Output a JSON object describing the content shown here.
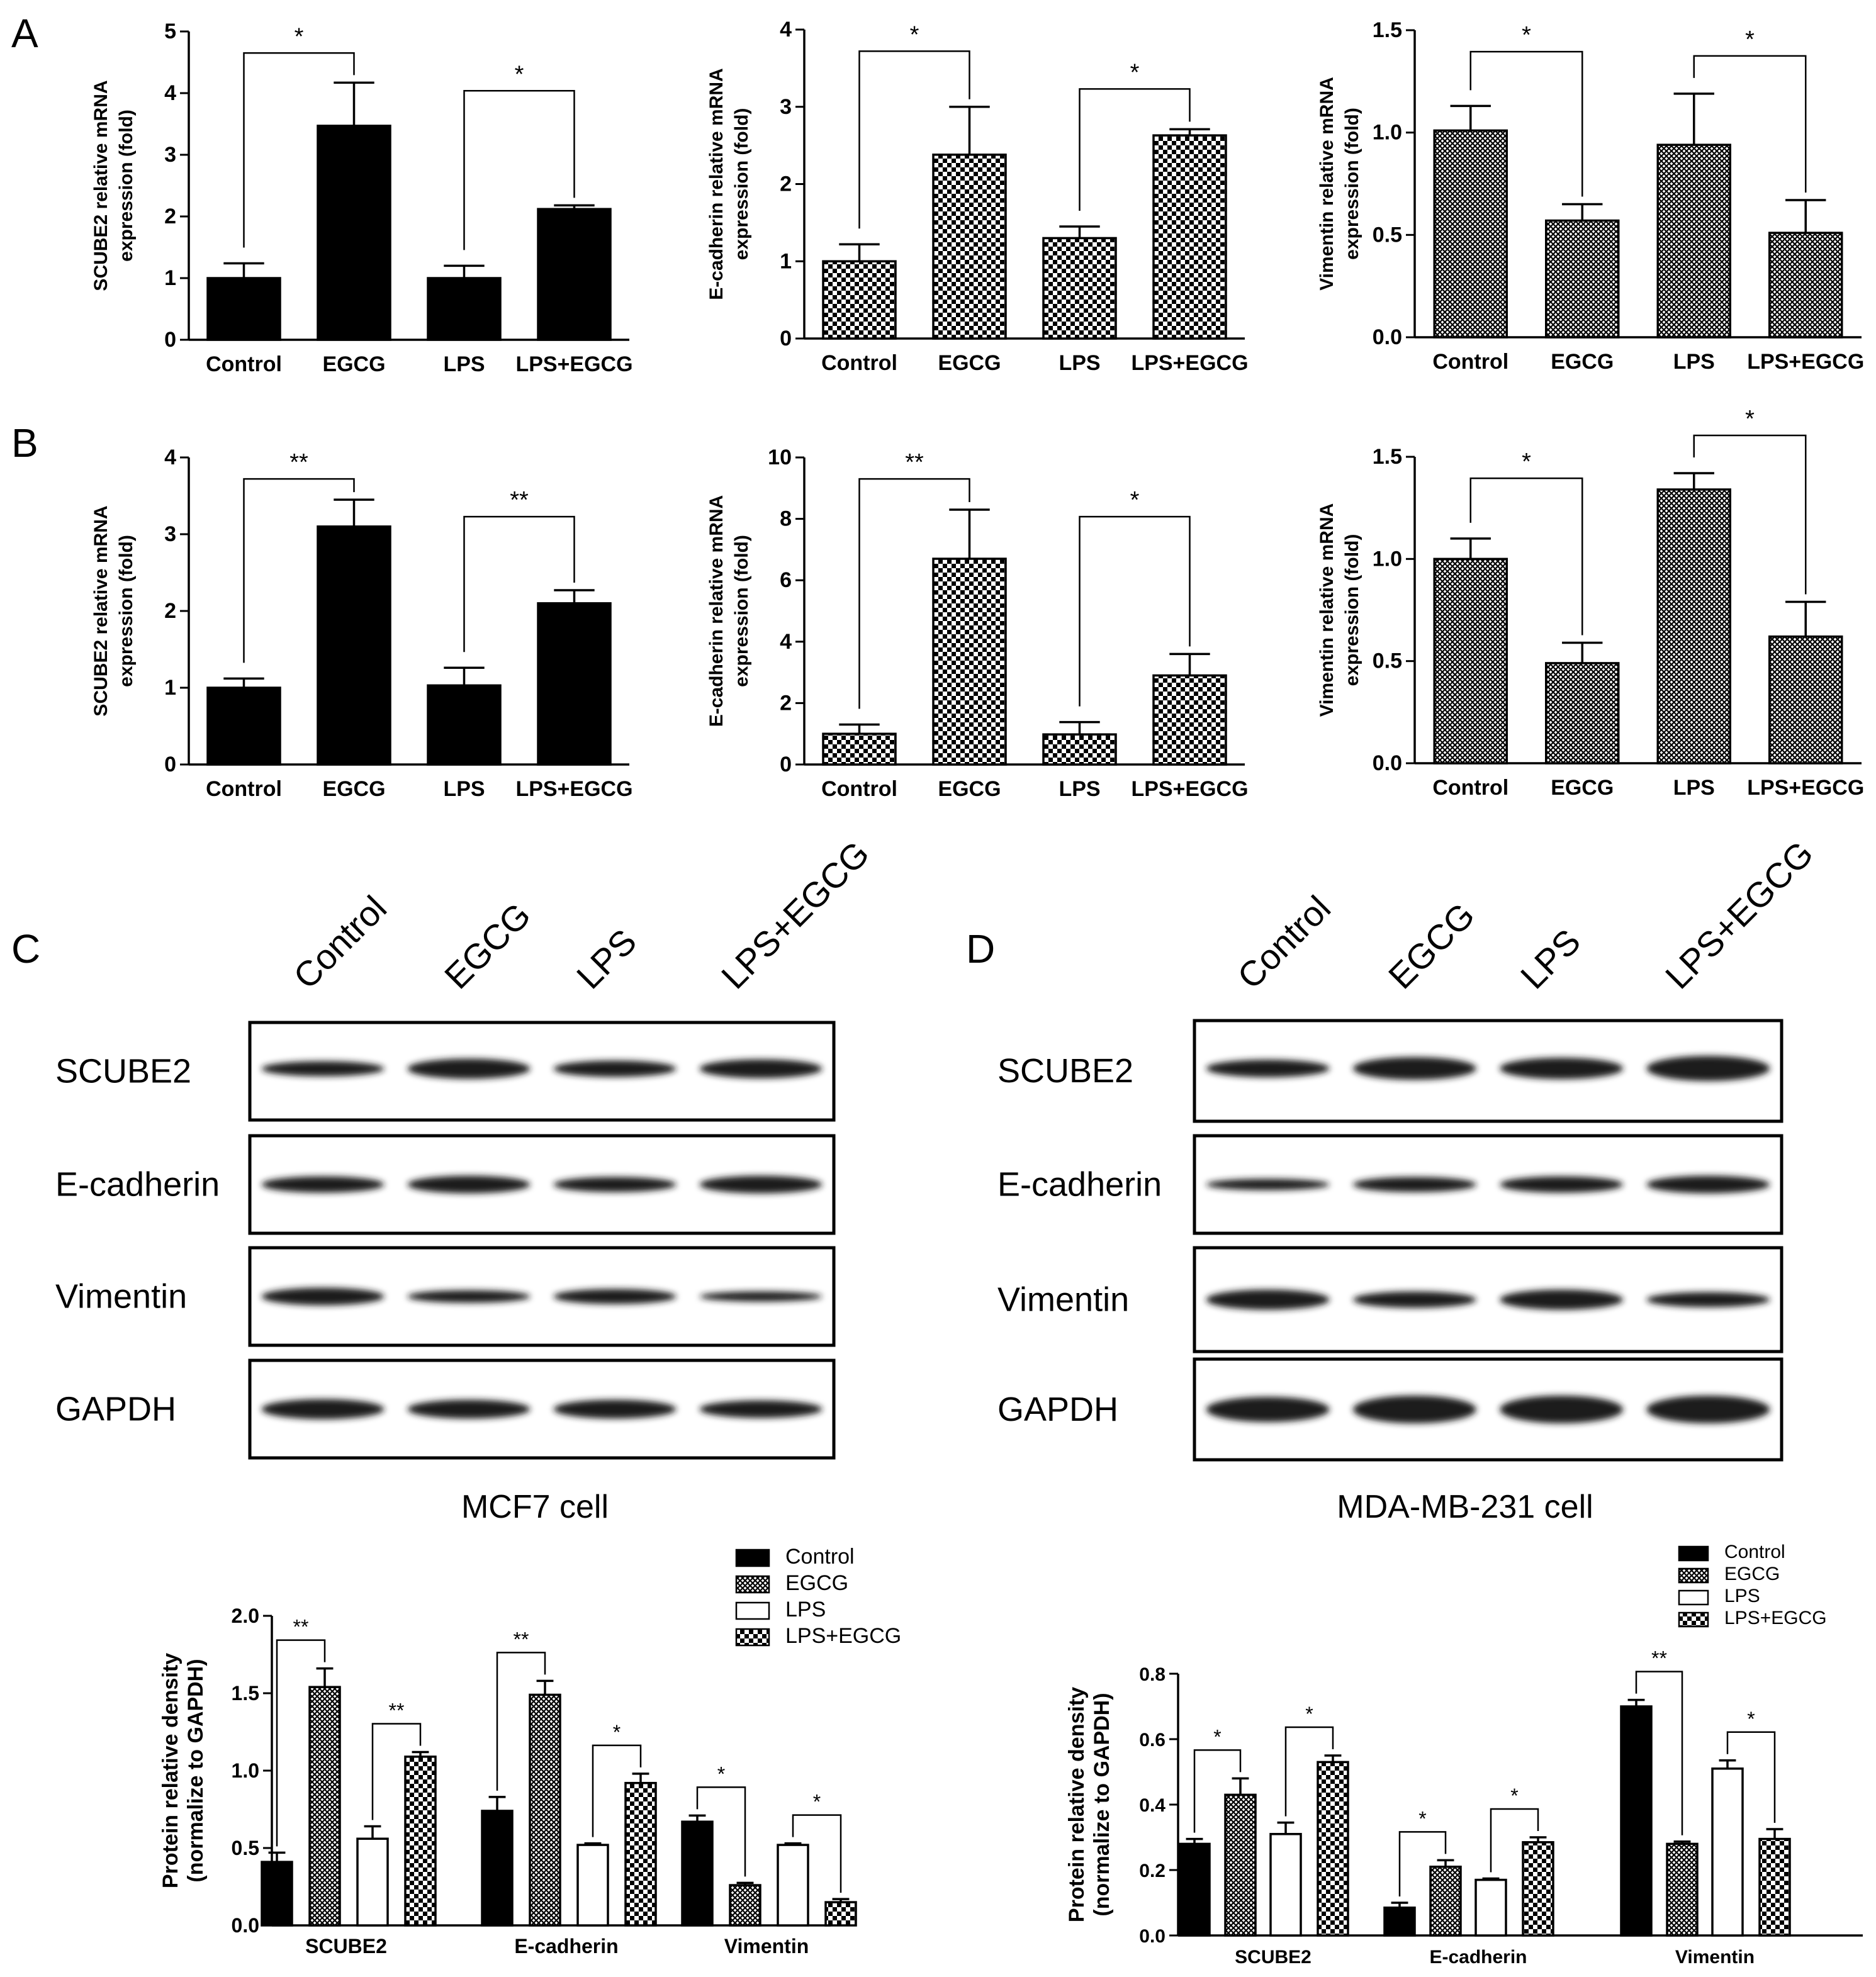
{
  "panel_labels": {
    "a": "A",
    "b": "B",
    "c": "C",
    "d": "D"
  },
  "colors": {
    "black": "#000000",
    "white": "#ffffff",
    "band": "#1a1a1a"
  },
  "groups": [
    "Control",
    "EGCG",
    "LPS",
    "LPS+EGCG"
  ],
  "blot_labels": [
    "SCUBE2",
    "E-cadherin",
    "Vimentin",
    "GAPDH"
  ],
  "blot_c_caption": "MCF7 cell",
  "blot_d_caption": "MDA-MB-231 cell",
  "chart_data": [
    {
      "id": "A1",
      "type": "bar",
      "style": "black",
      "ylabel1": "SCUBE2 relative mRNA",
      "ylabel2": "expression (fold)",
      "ylim": [
        0,
        5
      ],
      "ticks": [
        "0",
        "1",
        "2",
        "3",
        "4",
        "5"
      ],
      "tick_values": [
        0,
        1,
        2,
        3,
        4,
        5
      ],
      "categories": [
        "Control",
        "EGCG",
        "LPS",
        "LPS+EGCG"
      ],
      "values": [
        1.0,
        3.47,
        1.0,
        2.12
      ],
      "errors": [
        0.24,
        0.7,
        0.2,
        0.06
      ],
      "sig": [
        {
          "from": 0,
          "to": 1,
          "label": "*"
        },
        {
          "from": 2,
          "to": 3,
          "label": "*"
        }
      ]
    },
    {
      "id": "A2",
      "type": "bar",
      "style": "checker",
      "ylabel1": "E-cadherin relative mRNA",
      "ylabel2": "expression (fold)",
      "ylim": [
        0,
        4
      ],
      "ticks": [
        "0",
        "1",
        "2",
        "3",
        "4"
      ],
      "tick_values": [
        0,
        1,
        2,
        3,
        4
      ],
      "categories": [
        "Control",
        "EGCG",
        "LPS",
        "LPS+EGCG"
      ],
      "values": [
        1.0,
        2.38,
        1.3,
        2.63
      ],
      "errors": [
        0.22,
        0.62,
        0.15,
        0.08
      ],
      "sig": [
        {
          "from": 0,
          "to": 1,
          "label": "*"
        },
        {
          "from": 2,
          "to": 3,
          "label": "*"
        }
      ]
    },
    {
      "id": "A3",
      "type": "bar",
      "style": "grid",
      "ylabel1": "Vimentin relative mRNA",
      "ylabel2": "expression (fold)",
      "ylim": [
        0,
        1.5
      ],
      "ticks": [
        "0.0",
        "0.5",
        "1.0",
        "1.5"
      ],
      "tick_values": [
        0,
        0.5,
        1.0,
        1.5
      ],
      "categories": [
        "Control",
        "EGCG",
        "LPS",
        "LPS+EGCG"
      ],
      "values": [
        1.01,
        0.57,
        0.94,
        0.51
      ],
      "errors": [
        0.12,
        0.08,
        0.25,
        0.16
      ],
      "sig": [
        {
          "from": 0,
          "to": 1,
          "label": "*"
        },
        {
          "from": 2,
          "to": 3,
          "label": "*"
        }
      ]
    },
    {
      "id": "B1",
      "type": "bar",
      "style": "black",
      "ylabel1": "SCUBE2 relative mRNA",
      "ylabel2": "expression (fold)",
      "ylim": [
        0,
        4
      ],
      "ticks": [
        "0",
        "1",
        "2",
        "3",
        "4"
      ],
      "tick_values": [
        0,
        1,
        2,
        3,
        4
      ],
      "categories": [
        "Control",
        "EGCG",
        "LPS",
        "LPS+EGCG"
      ],
      "values": [
        1.0,
        3.1,
        1.03,
        2.1
      ],
      "errors": [
        0.12,
        0.35,
        0.23,
        0.17
      ],
      "sig": [
        {
          "from": 0,
          "to": 1,
          "label": "**"
        },
        {
          "from": 2,
          "to": 3,
          "label": "**"
        }
      ]
    },
    {
      "id": "B2",
      "type": "bar",
      "style": "checker",
      "ylabel1": "E-cadherin relative mRNA",
      "ylabel2": "expression (fold)",
      "ylim": [
        0,
        10
      ],
      "ticks": [
        "0",
        "2",
        "4",
        "6",
        "8",
        "10"
      ],
      "tick_values": [
        0,
        2,
        4,
        6,
        8,
        10
      ],
      "categories": [
        "Control",
        "EGCG",
        "LPS",
        "LPS+EGCG"
      ],
      "values": [
        1.0,
        6.7,
        0.98,
        2.9
      ],
      "errors": [
        0.3,
        1.6,
        0.4,
        0.7
      ],
      "sig": [
        {
          "from": 0,
          "to": 1,
          "label": "**"
        },
        {
          "from": 2,
          "to": 3,
          "label": "*"
        }
      ]
    },
    {
      "id": "B3",
      "type": "bar",
      "style": "grid",
      "ylabel1": "Vimentin relative mRNA",
      "ylabel2": "expression (fold)",
      "ylim": [
        0,
        1.5
      ],
      "ticks": [
        "0.0",
        "0.5",
        "1.0",
        "1.5"
      ],
      "tick_values": [
        0,
        0.5,
        1.0,
        1.5
      ],
      "categories": [
        "Control",
        "EGCG",
        "LPS",
        "LPS+EGCG"
      ],
      "values": [
        1.0,
        0.49,
        1.34,
        0.62
      ],
      "errors": [
        0.1,
        0.1,
        0.08,
        0.17
      ],
      "sig": [
        {
          "from": 0,
          "to": 1,
          "label": "*"
        },
        {
          "from": 2,
          "to": 3,
          "label": "*"
        }
      ]
    },
    {
      "id": "C",
      "type": "bar",
      "grouped": true,
      "ylabel1": "Protein relative density",
      "ylabel2": "(normalize to GAPDH)",
      "ylim": [
        0,
        2.0
      ],
      "ticks": [
        "0.0",
        "0.5",
        "1.0",
        "1.5",
        "2.0"
      ],
      "tick_values": [
        0,
        0.5,
        1.0,
        1.5,
        2.0
      ],
      "categories": [
        "SCUBE2",
        "E-cadherin",
        "Vimentin"
      ],
      "legend": [
        "Control",
        "EGCG",
        "LPS",
        "LPS+EGCG"
      ],
      "series": [
        {
          "name": "Control",
          "style": "black",
          "values": [
            0.41,
            0.74,
            0.67
          ],
          "errors": [
            0.06,
            0.09,
            0.04
          ]
        },
        {
          "name": "EGCG",
          "style": "grid",
          "values": [
            1.54,
            1.49,
            0.26
          ],
          "errors": [
            0.12,
            0.09,
            0.015
          ]
        },
        {
          "name": "LPS",
          "style": "white",
          "values": [
            0.56,
            0.52,
            0.52
          ],
          "errors": [
            0.08,
            0.01,
            0.01
          ]
        },
        {
          "name": "LPS+EGCG",
          "style": "checker",
          "values": [
            1.09,
            0.92,
            0.15
          ],
          "errors": [
            0.03,
            0.06,
            0.02
          ]
        }
      ],
      "sig": [
        {
          "cat": 0,
          "from": 0,
          "to": 1,
          "label": "**"
        },
        {
          "cat": 0,
          "from": 2,
          "to": 3,
          "label": "**"
        },
        {
          "cat": 1,
          "from": 0,
          "to": 1,
          "label": "**"
        },
        {
          "cat": 1,
          "from": 2,
          "to": 3,
          "label": "*"
        },
        {
          "cat": 2,
          "from": 0,
          "to": 1,
          "label": "*"
        },
        {
          "cat": 2,
          "from": 2,
          "to": 3,
          "label": "*"
        }
      ]
    },
    {
      "id": "D",
      "type": "bar",
      "grouped": true,
      "ylabel1": "Protein relative density",
      "ylabel2": "(normalize to GAPDH)",
      "ylim": [
        0,
        0.8
      ],
      "ticks": [
        "0.0",
        "0.2",
        "0.4",
        "0.6",
        "0.8"
      ],
      "tick_values": [
        0,
        0.2,
        0.4,
        0.6,
        0.8
      ],
      "categories": [
        "SCUBE2",
        "E-cadherin",
        "Vimentin"
      ],
      "legend": [
        "Control",
        "EGCG",
        "LPS",
        "LPS+EGCG"
      ],
      "series": [
        {
          "name": "Control",
          "style": "black",
          "values": [
            0.28,
            0.085,
            0.7
          ],
          "errors": [
            0.015,
            0.015,
            0.02
          ]
        },
        {
          "name": "EGCG",
          "style": "grid",
          "values": [
            0.43,
            0.21,
            0.28
          ],
          "errors": [
            0.05,
            0.02,
            0.007
          ]
        },
        {
          "name": "LPS",
          "style": "white",
          "values": [
            0.31,
            0.17,
            0.51
          ],
          "errors": [
            0.035,
            0.004,
            0.025
          ]
        },
        {
          "name": "LPS+EGCG",
          "style": "checker",
          "values": [
            0.53,
            0.285,
            0.295
          ],
          "errors": [
            0.02,
            0.015,
            0.03
          ]
        }
      ],
      "sig": [
        {
          "cat": 0,
          "from": 0,
          "to": 1,
          "label": "*"
        },
        {
          "cat": 0,
          "from": 2,
          "to": 3,
          "label": "*"
        },
        {
          "cat": 1,
          "from": 0,
          "to": 1,
          "label": "*"
        },
        {
          "cat": 1,
          "from": 2,
          "to": 3,
          "label": "*"
        },
        {
          "cat": 2,
          "from": 0,
          "to": 1,
          "label": "**"
        },
        {
          "cat": 2,
          "from": 2,
          "to": 3,
          "label": "*"
        }
      ]
    }
  ]
}
